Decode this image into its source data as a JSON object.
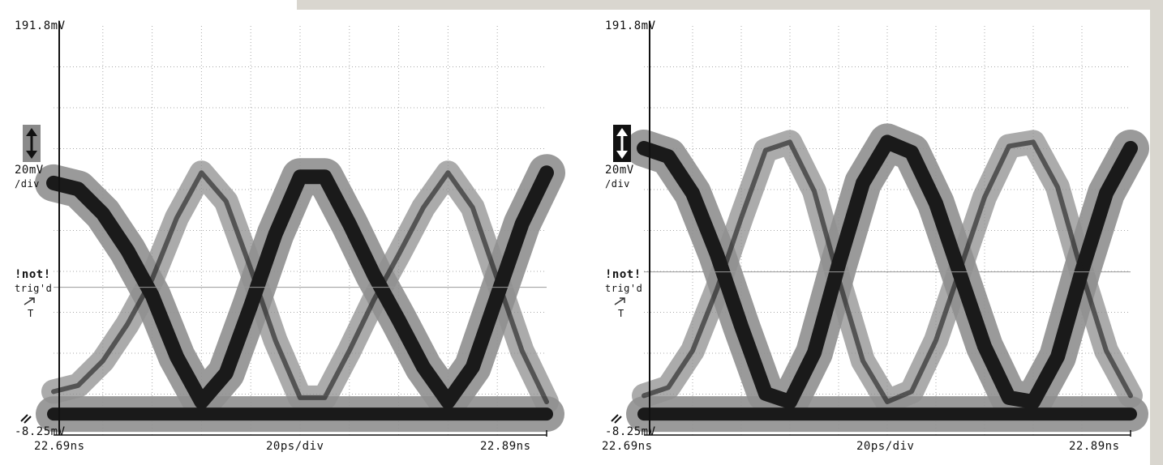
{
  "colors": {
    "grid": "#a8a8a8",
    "outer_trace": "#8f8f8f",
    "inner_trace": "#1a1a1a",
    "scale_badge_left": "#8a8a8a",
    "scale_badge_right": "#111111"
  },
  "scopes": [
    {
      "id": "left",
      "top_label": "191.8mV",
      "bottom_label": "-8.25mV",
      "scale_label": "20mV",
      "scale_unit": "/div",
      "status_main": "!not!",
      "status_sub": "trig'd",
      "trigger_letter": "T",
      "time_left": "22.69ns",
      "time_center": "20ps/div",
      "time_right": "22.89ns",
      "scale_icon": "vertical-scale-arrow-icon"
    },
    {
      "id": "right",
      "top_label": "191.8mV",
      "bottom_label": "-8.25mV",
      "scale_label": "20mV",
      "scale_unit": "/div",
      "status_main": "!not!",
      "status_sub": "trig'd",
      "trigger_letter": "T",
      "time_left": "22.69ns",
      "time_center": "20ps/div",
      "time_right": "22.89ns",
      "scale_icon": "vertical-scale-arrow-icon"
    }
  ],
  "chart_data": [
    {
      "type": "line",
      "xlim": [
        22.69,
        22.89
      ],
      "ylim": [
        -8.25,
        191.8
      ],
      "x_unit": "ns",
      "y_unit": "mV",
      "grid": true,
      "x_label": "20ps/div",
      "y_label": "20mV /div",
      "series": [
        {
          "x": [
            22.69,
            22.7,
            22.71,
            22.72,
            22.73,
            22.74,
            22.75,
            22.76,
            22.77,
            22.78,
            22.79,
            22.8,
            22.81,
            22.82,
            22.83,
            22.84,
            22.85,
            22.86,
            22.87,
            22.88,
            22.89
          ],
          "values": [
            115,
            112,
            100,
            82,
            60,
            30,
            8,
            22,
            55,
            90,
            118,
            118,
            95,
            70,
            48,
            25,
            8,
            25,
            60,
            95,
            120
          ]
        },
        {
          "x": [
            22.69,
            22.89
          ],
          "values": [
            2,
            2
          ]
        }
      ]
    },
    {
      "type": "line",
      "xlim": [
        22.69,
        22.89
      ],
      "ylim": [
        -8.25,
        191.8
      ],
      "x_unit": "ns",
      "y_unit": "mV",
      "grid": true,
      "x_label": "20ps/div",
      "y_label": "20mV /div",
      "series": [
        {
          "x": [
            22.69,
            22.7,
            22.71,
            22.72,
            22.73,
            22.74,
            22.75,
            22.76,
            22.77,
            22.78,
            22.79,
            22.8,
            22.81,
            22.82,
            22.83,
            22.84,
            22.85,
            22.86,
            22.87,
            22.88,
            22.89
          ],
          "values": [
            132,
            128,
            110,
            80,
            45,
            12,
            8,
            32,
            75,
            115,
            135,
            130,
            105,
            70,
            35,
            10,
            8,
            30,
            72,
            110,
            132
          ]
        },
        {
          "x": [
            22.69,
            22.89
          ],
          "values": [
            2,
            2
          ]
        }
      ]
    }
  ]
}
